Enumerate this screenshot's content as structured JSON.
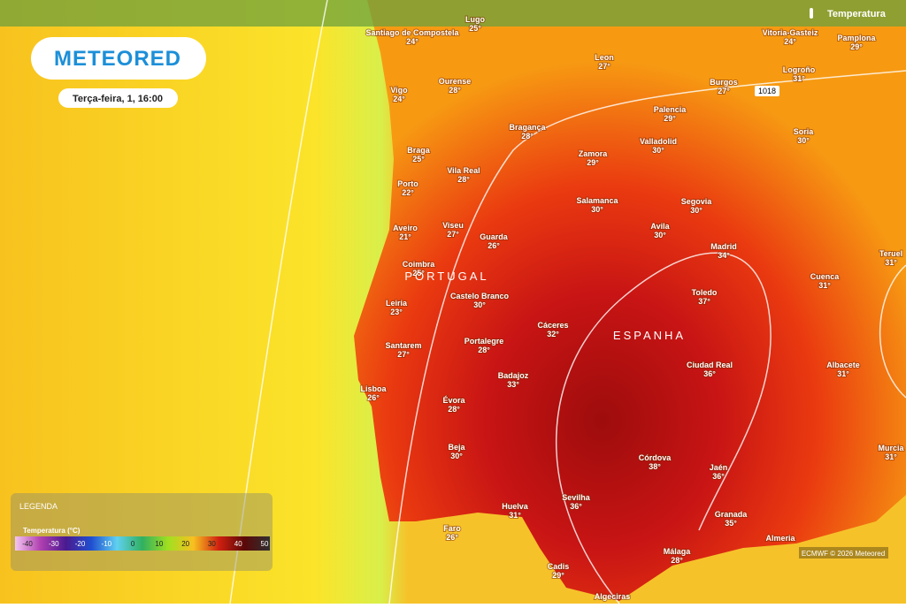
{
  "header": {
    "logo": "METEORED",
    "date": "Terça-feira, 1, 16:00",
    "layer": "Temperatura"
  },
  "countries": [
    "PORTUGAL",
    "ESPANHA"
  ],
  "isobar": "1018",
  "cities": [
    {
      "name": "Santiago de Compostela",
      "temp": "24°"
    },
    {
      "name": "Lugo",
      "temp": "25°"
    },
    {
      "name": "Vitoria-Gasteiz",
      "temp": "24°"
    },
    {
      "name": "Pamplona",
      "temp": "29°"
    },
    {
      "name": "Leon",
      "temp": "27°"
    },
    {
      "name": "Ourense",
      "temp": "28°"
    },
    {
      "name": "Vigo",
      "temp": "24°"
    },
    {
      "name": "Burgos",
      "temp": "27°"
    },
    {
      "name": "Logroño",
      "temp": "31°"
    },
    {
      "name": "Palencia",
      "temp": "29°"
    },
    {
      "name": "Bragança",
      "temp": "28°"
    },
    {
      "name": "Soria",
      "temp": "30°"
    },
    {
      "name": "Valladolid",
      "temp": "30°"
    },
    {
      "name": "Braga",
      "temp": "25°"
    },
    {
      "name": "Zamora",
      "temp": "29°"
    },
    {
      "name": "Vila Real",
      "temp": "28°"
    },
    {
      "name": "Porto",
      "temp": "22°"
    },
    {
      "name": "Salamanca",
      "temp": "30°"
    },
    {
      "name": "Segovia",
      "temp": "30°"
    },
    {
      "name": "Aveiro",
      "temp": "21°"
    },
    {
      "name": "Viseu",
      "temp": "27°"
    },
    {
      "name": "Guarda",
      "temp": "26°"
    },
    {
      "name": "Avila",
      "temp": "30°"
    },
    {
      "name": "Madrid",
      "temp": "34°"
    },
    {
      "name": "Teruel",
      "temp": "31°"
    },
    {
      "name": "Coimbra",
      "temp": "25°"
    },
    {
      "name": "Castelo Branco",
      "temp": "30°"
    },
    {
      "name": "Toledo",
      "temp": "37°"
    },
    {
      "name": "Cuenca",
      "temp": "31°"
    },
    {
      "name": "Leiria",
      "temp": "23°"
    },
    {
      "name": "Cáceres",
      "temp": "32°"
    },
    {
      "name": "Portalegre",
      "temp": "28°"
    },
    {
      "name": "Santarem",
      "temp": "27°"
    },
    {
      "name": "Ciudad Real",
      "temp": "36°"
    },
    {
      "name": "Albacete",
      "temp": "31°"
    },
    {
      "name": "Lisboa",
      "temp": "26°"
    },
    {
      "name": "Badajoz",
      "temp": "33°"
    },
    {
      "name": "Évora",
      "temp": "28°"
    },
    {
      "name": "Beja",
      "temp": "30°"
    },
    {
      "name": "Córdova",
      "temp": "38°"
    },
    {
      "name": "Jaén",
      "temp": "36°"
    },
    {
      "name": "Murcia",
      "temp": "31°"
    },
    {
      "name": "Sevilha",
      "temp": "36°"
    },
    {
      "name": "Huelva",
      "temp": "31°"
    },
    {
      "name": "Granada",
      "temp": "35°"
    },
    {
      "name": "Faro",
      "temp": "26°"
    },
    {
      "name": "Almeria"
    },
    {
      "name": "Málaga",
      "temp": "28°"
    },
    {
      "name": "Cadis",
      "temp": "29°"
    },
    {
      "name": "Algeciras"
    }
  ],
  "legend": {
    "title": "LEGENDA",
    "subtitle": "Temperatura (°C)",
    "scale": [
      "-40",
      "-30",
      "-20",
      "-10",
      "0",
      "10",
      "20",
      "30",
      "40",
      "50"
    ]
  },
  "credit": "ECMWF © 2026 Meteored"
}
